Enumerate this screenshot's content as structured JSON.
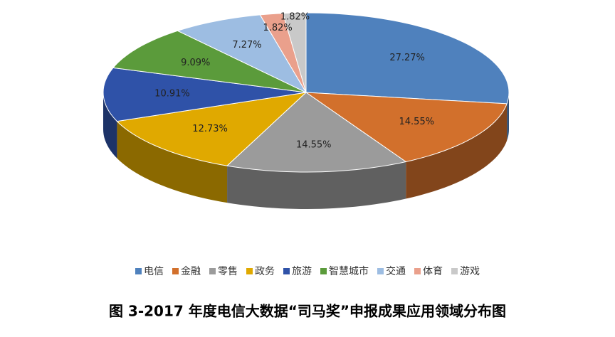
{
  "chart_data": {
    "type": "pie3d",
    "categories": [
      "电信",
      "金融",
      "零售",
      "政务",
      "旅游",
      "智慧城市",
      "交通",
      "体育",
      "游戏"
    ],
    "values": [
      27.27,
      14.55,
      14.55,
      12.73,
      10.91,
      9.09,
      7.27,
      1.82,
      1.82
    ],
    "value_labels": [
      "27.27%",
      "14.55%",
      "14.55%",
      "12.73%",
      "10.91%",
      "9.09%",
      "7.27%",
      "1.82%",
      "1.82%"
    ],
    "colors": [
      "#4f81bd",
      "#d2702c",
      "#9b9b9b",
      "#e0a900",
      "#2f52a8",
      "#5b9b3b",
      "#9dbde2",
      "#eaa08c",
      "#c9c9c9"
    ],
    "legend": "bottom",
    "caption": "图 3-2017 年度电信大数据“司马奖”申报成果应用领域分布图"
  }
}
